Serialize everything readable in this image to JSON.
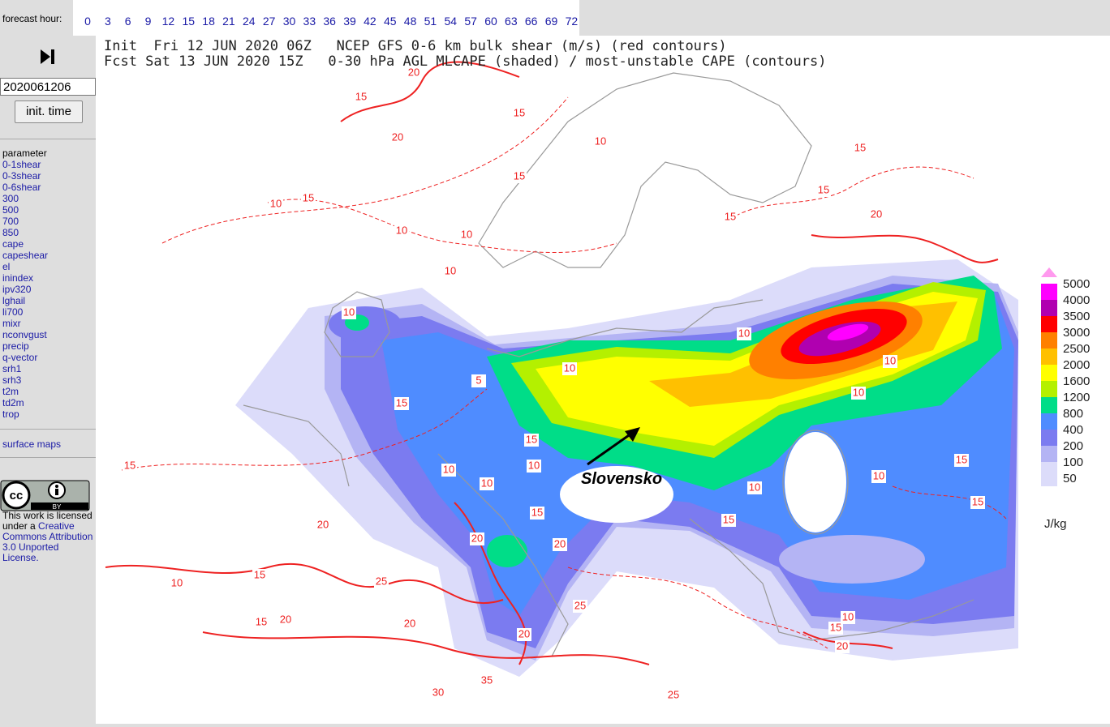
{
  "top_bar": {
    "label": "forecast hour:",
    "hours": [
      "0",
      "3",
      "6",
      "9",
      "12",
      "15",
      "18",
      "21",
      "24",
      "27",
      "30",
      "33",
      "36",
      "39",
      "42",
      "45",
      "48",
      "51",
      "54",
      "57",
      "60",
      "63",
      "66",
      "69",
      "72"
    ]
  },
  "sidebar": {
    "init_value": "2020061206",
    "init_button": "init. time",
    "parameter_heading": "parameter",
    "parameters": [
      "0-1shear",
      "0-3shear",
      "0-6shear",
      "300",
      "500",
      "700",
      "850",
      "cape",
      "capeshear",
      "el",
      "inindex",
      "ipv320",
      "lghail",
      "li700",
      "mixr",
      "nconvgust",
      "precip",
      "q-vector",
      "srh1",
      "srh3",
      "t2m",
      "td2m",
      "trop"
    ],
    "surface_maps": "surface maps",
    "license": {
      "badge_cc": "cc",
      "badge_by": "BY",
      "text": "This work is licensed under a",
      "link": "Creative Commons Attribution 3.0 Unported License."
    }
  },
  "map": {
    "title_lines": [
      "Init  Fri 12 JUN 2020 06Z   NCEP GFS 0-6 km bulk shear (m/s) (red contours)",
      "Fcst Sat 13 JUN 2020 15Z   0-30 hPa AGL MLCAPE (shaded) / most-unstable CAPE (contours)"
    ],
    "legend": {
      "labels": [
        "5000",
        "4000",
        "3500",
        "3000",
        "2500",
        "2000",
        "1600",
        "1200",
        "800",
        "400",
        "200",
        "100",
        "50"
      ],
      "colors": [
        "#ff99ee",
        "#ff00ff",
        "#b000b0",
        "#ff0000",
        "#ff8000",
        "#ffc000",
        "#ffff00",
        "#b4f000",
        "#00dd88",
        "#4f8cff",
        "#7b7bf0",
        "#b4b4f4",
        "#dcdcfa"
      ],
      "unit": "J/kg"
    },
    "annotation": "Slovensko",
    "contour_labels": [
      "20",
      "15",
      "20",
      "15",
      "15",
      "10",
      "15",
      "15",
      "20",
      "15",
      "10",
      "10",
      "10",
      "10",
      "15",
      "10",
      "10",
      "10",
      "10",
      "10",
      "15",
      "5",
      "15",
      "10",
      "10",
      "10",
      "10",
      "15",
      "15",
      "20",
      "20",
      "10",
      "15",
      "20",
      "20",
      "20",
      "30",
      "35",
      "25",
      "20",
      "15",
      "10",
      "15",
      "10",
      "15",
      "15",
      "15",
      "20",
      "25",
      "25"
    ]
  }
}
